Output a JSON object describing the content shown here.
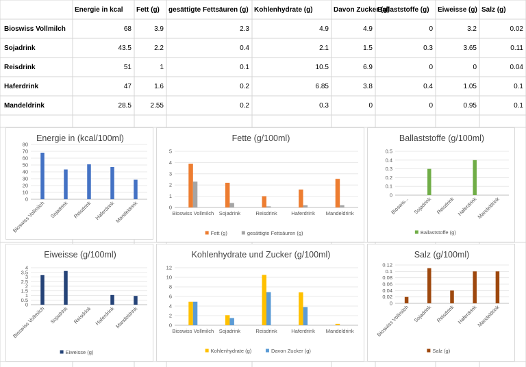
{
  "table": {
    "headers": [
      "Energie in kcal",
      "Fett (g)",
      "gesättigte Fettsäuren (g)",
      "Kohlenhydrate (g)",
      "Davon Zucker (g)",
      "Ballaststoffe (g)",
      "Eiweisse (g)",
      "Salz (g)"
    ],
    "rows": [
      {
        "name": "Bioswiss Vollmilch",
        "values": [
          "68",
          "3.9",
          "2.3",
          "4.9",
          "4.9",
          "0",
          "3.2",
          "0.02"
        ]
      },
      {
        "name": "Sojadrink",
        "values": [
          "43.5",
          "2.2",
          "0.4",
          "2.1",
          "1.5",
          "0.3",
          "3.65",
          "0.11"
        ]
      },
      {
        "name": "Reisdrink",
        "values": [
          "51",
          "1",
          "0.1",
          "10.5",
          "6.9",
          "0",
          "0",
          "0.04"
        ]
      },
      {
        "name": "Haferdrink",
        "values": [
          "47",
          "1.6",
          "0.2",
          "6.85",
          "3.8",
          "0.4",
          "1.05",
          "0.1"
        ]
      },
      {
        "name": "Mandeldrink",
        "values": [
          "28.5",
          "2.55",
          "0.2",
          "0.3",
          "0",
          "0",
          "0.95",
          "0.1"
        ]
      }
    ]
  },
  "chart_data": [
    {
      "id": "energie",
      "type": "bar",
      "title": "Energie in (kcal/100ml)",
      "categories": [
        "Bioswiss Vollmilch",
        "Sojadrink",
        "Reisdrink",
        "Haferdrink",
        "Mandeldrink"
      ],
      "series": [
        {
          "values": [
            68,
            43.5,
            51,
            47,
            28.5
          ],
          "color": "#4472c4"
        }
      ],
      "ylim": [
        0,
        80
      ],
      "yticks": [
        "0",
        "10",
        "20",
        "30",
        "40",
        "50",
        "60",
        "70",
        "80"
      ],
      "legend": [],
      "rotated_labels": true
    },
    {
      "id": "fette",
      "type": "bar",
      "title": "Fette (g/100ml)",
      "categories": [
        "Bioswiss Vollmilch",
        "Sojadrink",
        "Reisdrink",
        "Haferdrink",
        "Mandeldrink"
      ],
      "series": [
        {
          "name": "Fett (g)",
          "values": [
            3.9,
            2.2,
            1,
            1.6,
            2.55
          ],
          "color": "#ed7d31"
        },
        {
          "name": "gesättigte Fettsäuren (g)",
          "values": [
            2.3,
            0.4,
            0.1,
            0.2,
            0.2
          ],
          "color": "#a5a5a5"
        }
      ],
      "ylim": [
        0,
        5
      ],
      "yticks": [
        "0",
        "1",
        "2",
        "3",
        "4",
        "5"
      ],
      "legend": [
        "Fett (g)",
        "gesättigte Fettsäuren (g)"
      ],
      "rotated_labels": false
    },
    {
      "id": "ballaststoffe",
      "type": "bar",
      "title": "Ballaststoffe (g/100ml)",
      "categories": [
        "Bioswis...",
        "Sojadrink",
        "Reisdrink",
        "Haferdrink",
        "Mandeldrink"
      ],
      "series": [
        {
          "name": "Ballaststoffe (g)",
          "values": [
            0,
            0.3,
            0,
            0.4,
            0
          ],
          "color": "#70ad47"
        }
      ],
      "ylim": [
        0,
        0.5
      ],
      "yticks": [
        "0",
        "0.1",
        "0.2",
        "0.3",
        "0.4",
        "0.5"
      ],
      "legend": [
        "Ballaststoffe (g)"
      ],
      "rotated_labels": true
    },
    {
      "id": "eiweisse",
      "type": "bar",
      "title": "Eiweisse (g/100ml)",
      "categories": [
        "Bioswiss Vollmilch",
        "Sojadrink",
        "Reisdrink",
        "Haferdrink",
        "Mandeldrink"
      ],
      "series": [
        {
          "name": "Eiweisse (g)",
          "values": [
            3.2,
            3.65,
            0,
            1.05,
            0.95
          ],
          "color": "#264478"
        }
      ],
      "ylim": [
        0,
        4
      ],
      "yticks": [
        "0",
        "0.5",
        "1",
        "1.5",
        "2",
        "2.5",
        "3",
        "3.5",
        "4"
      ],
      "legend": [
        "Eiweisse (g)"
      ],
      "rotated_labels": true
    },
    {
      "id": "kohlenhydrate",
      "type": "bar",
      "title": "Kohlenhydrate und Zucker (g/100ml)",
      "categories": [
        "Bioswiss Vollmilch",
        "Sojadrink",
        "Reisdrink",
        "Haferdrink",
        "Mandeldrink"
      ],
      "series": [
        {
          "name": "Kohlenhydrate (g)",
          "values": [
            4.9,
            2.1,
            10.5,
            6.85,
            0.3
          ],
          "color": "#ffc000"
        },
        {
          "name": "Davon Zucker (g)",
          "values": [
            4.9,
            1.5,
            6.9,
            3.8,
            0
          ],
          "color": "#5b9bd5"
        }
      ],
      "ylim": [
        0,
        12
      ],
      "yticks": [
        "0",
        "2",
        "4",
        "6",
        "8",
        "10",
        "12"
      ],
      "legend": [
        "Kohlenhydrate (g)",
        "Davon Zucker (g)"
      ],
      "rotated_labels": false
    },
    {
      "id": "salz",
      "type": "bar",
      "title": "Salz (g/100ml)",
      "categories": [
        "Bioswiss Vollmilch",
        "Sojadrink",
        "Reisdrink",
        "Haferdrink",
        "Mandeldrink"
      ],
      "series": [
        {
          "name": "Salz (g)",
          "values": [
            0.02,
            0.11,
            0.04,
            0.1,
            0.1
          ],
          "color": "#9e480e"
        }
      ],
      "ylim": [
        0,
        0.12
      ],
      "yticks": [
        "0",
        "0.02",
        "0.04",
        "0.06",
        "0.08",
        "0.1",
        "0.12"
      ],
      "legend": [
        "Salz (g)"
      ],
      "rotated_labels": true
    }
  ]
}
